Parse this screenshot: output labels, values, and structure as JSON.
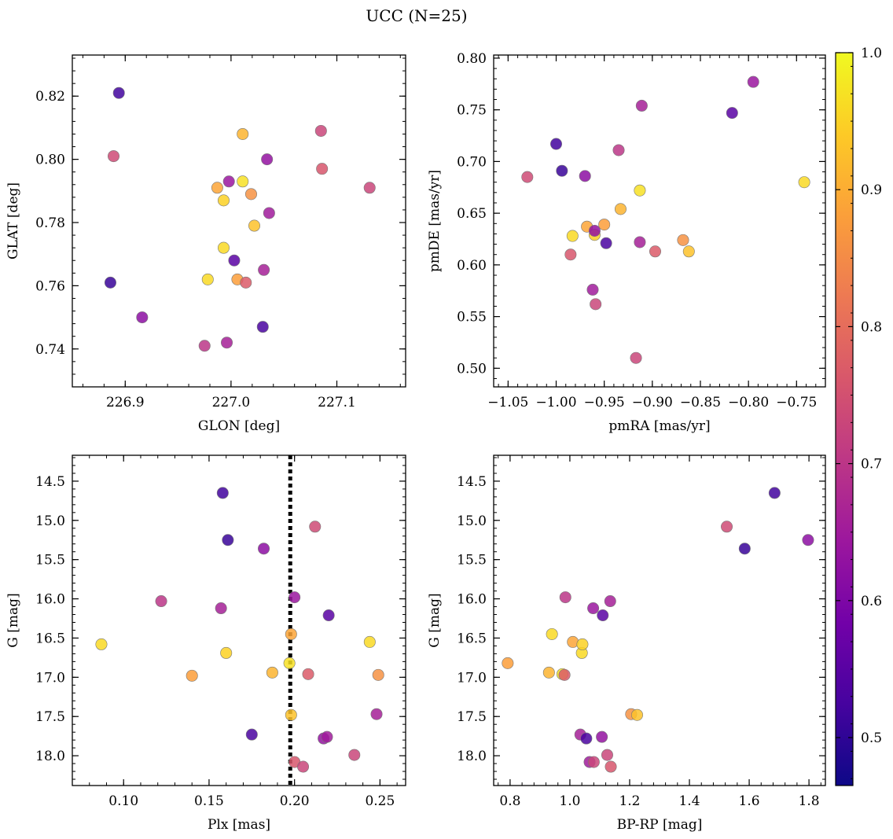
{
  "figure": {
    "title": "UCC (N=25)"
  },
  "colorbar": {
    "ticks": [
      "0.5",
      "0.6",
      "0.7",
      "0.8",
      "0.9",
      "1.0"
    ],
    "tick_values": [
      0.5,
      0.6,
      0.7,
      0.8,
      0.9,
      1.0
    ],
    "range": [
      0.465,
      1.0
    ],
    "colors": [
      "#0d0887",
      "#46039f",
      "#7201a8",
      "#9c179e",
      "#bd3786",
      "#d8576b",
      "#ed7953",
      "#fb9f3a",
      "#fdca26",
      "#f0f921"
    ]
  },
  "chart_data": [
    {
      "type": "scatter",
      "xlabel": "GLON [deg]",
      "ylabel": "GLAT [deg]",
      "xlim": [
        226.85,
        227.165
      ],
      "ylim": [
        0.728,
        0.833
      ],
      "xticks": [
        226.9,
        227.0,
        227.1
      ],
      "xtick_labels": [
        "226.9",
        "227.0",
        "227.1"
      ],
      "yticks": [
        0.74,
        0.76,
        0.78,
        0.8,
        0.82
      ],
      "ytick_labels": [
        "0.74",
        "0.76",
        "0.78",
        "0.80",
        "0.82"
      ],
      "x": [
        226.894,
        226.889,
        226.886,
        226.916,
        226.975,
        226.996,
        226.998,
        227.003,
        226.993,
        226.987,
        226.978,
        226.993,
        227.006,
        227.011,
        227.011,
        227.014,
        227.019,
        227.022,
        227.031,
        227.03,
        227.034,
        227.036,
        227.085,
        227.086,
        227.131
      ],
      "y": [
        0.821,
        0.801,
        0.761,
        0.75,
        0.741,
        0.742,
        0.793,
        0.768,
        0.772,
        0.791,
        0.762,
        0.787,
        0.762,
        0.808,
        0.793,
        0.761,
        0.789,
        0.779,
        0.765,
        0.747,
        0.8,
        0.783,
        0.809,
        0.797,
        0.791
      ]
    },
    {
      "type": "scatter",
      "xlabel": "pmRA [mas/yr]",
      "ylabel": "pmDE [mas/yr]",
      "xlim": [
        -1.065,
        -0.72
      ],
      "ylim": [
        0.482,
        0.803
      ],
      "xticks": [
        -1.05,
        -1.0,
        -0.95,
        -0.9,
        -0.85,
        -0.8,
        -0.75
      ],
      "xtick_labels": [
        "−1.05",
        "−1.00",
        "−0.95",
        "−0.90",
        "−0.85",
        "−0.80",
        "−0.75"
      ],
      "yticks": [
        0.5,
        0.55,
        0.6,
        0.65,
        0.7,
        0.75,
        0.8
      ],
      "ytick_labels": [
        "0.50",
        "0.55",
        "0.60",
        "0.65",
        "0.70",
        "0.75",
        "0.80"
      ],
      "x": [
        -1.0,
        -1.03,
        -0.994,
        -0.97,
        -0.935,
        -0.911,
        -0.795,
        -0.817,
        -0.742,
        -0.968,
        -0.983,
        -0.96,
        -0.95,
        -0.933,
        -0.913,
        -0.897,
        -0.868,
        -0.862,
        -0.913,
        -0.948,
        -0.96,
        -0.962,
        -0.959,
        -0.985,
        -0.917
      ],
      "y": [
        0.717,
        0.685,
        0.691,
        0.686,
        0.711,
        0.754,
        0.777,
        0.747,
        0.68,
        0.637,
        0.628,
        0.629,
        0.639,
        0.654,
        0.672,
        0.613,
        0.624,
        0.613,
        0.622,
        0.621,
        0.633,
        0.576,
        0.562,
        0.61,
        0.51
      ]
    },
    {
      "type": "scatter",
      "xlabel": "Plx [mas]",
      "ylabel": "G [mag]",
      "xlim": [
        0.07,
        0.265
      ],
      "ylim": [
        18.38,
        14.17
      ],
      "y_inverted": true,
      "reference_line": {
        "x": 0.1975,
        "style": "dotted"
      },
      "xticks": [
        0.1,
        0.15,
        0.2,
        0.25
      ],
      "xtick_labels": [
        "0.10",
        "0.15",
        "0.20",
        "0.25"
      ],
      "yticks": [
        14.5,
        15.0,
        15.5,
        16.0,
        16.5,
        17.0,
        17.5,
        18.0
      ],
      "ytick_labels": [
        "14.5",
        "15.0",
        "15.5",
        "16.0",
        "16.5",
        "17.0",
        "17.5",
        "18.0"
      ],
      "x": [
        0.158,
        0.212,
        0.161,
        0.182,
        0.122,
        0.157,
        0.2,
        0.22,
        0.087,
        0.198,
        0.244,
        0.16,
        0.14,
        0.187,
        0.197,
        0.208,
        0.249,
        0.198,
        0.248,
        0.175,
        0.217,
        0.219,
        0.235,
        0.2,
        0.205
      ],
      "y": [
        14.65,
        15.08,
        15.25,
        15.36,
        16.03,
        16.12,
        15.98,
        16.21,
        16.58,
        16.45,
        16.55,
        16.69,
        16.98,
        16.94,
        16.82,
        16.96,
        16.97,
        17.48,
        17.47,
        17.73,
        17.78,
        17.76,
        17.99,
        18.08,
        18.14
      ]
    },
    {
      "type": "scatter",
      "xlabel": "BP-RP [mag]",
      "ylabel": "G [mag]",
      "xlim": [
        0.745,
        1.855
      ],
      "ylim": [
        18.38,
        14.17
      ],
      "y_inverted": true,
      "xticks": [
        0.8,
        1.0,
        1.2,
        1.4,
        1.6,
        1.8
      ],
      "xtick_labels": [
        "0.8",
        "1.0",
        "1.2",
        "1.4",
        "1.6",
        "1.8"
      ],
      "yticks": [
        14.5,
        15.0,
        15.5,
        16.0,
        16.5,
        17.0,
        17.5,
        18.0
      ],
      "ytick_labels": [
        "14.5",
        "15.0",
        "15.5",
        "16.0",
        "16.5",
        "17.0",
        "17.5",
        "18.0"
      ],
      "x": [
        1.685,
        1.525,
        1.585,
        1.797,
        0.985,
        1.135,
        1.078,
        1.11,
        0.94,
        1.01,
        1.04,
        1.042,
        0.792,
        0.93,
        0.975,
        0.982,
        1.205,
        1.225,
        1.035,
        1.055,
        1.107,
        1.066,
        1.125,
        1.137,
        1.08
      ],
      "y": [
        14.65,
        15.08,
        15.36,
        15.25,
        15.98,
        16.03,
        16.12,
        16.21,
        16.45,
        16.55,
        16.69,
        16.58,
        16.82,
        16.94,
        16.96,
        16.97,
        17.47,
        17.48,
        17.73,
        17.78,
        17.76,
        18.08,
        17.99,
        18.14,
        18.08
      ]
    }
  ],
  "membership": [
    0.52,
    0.74,
    0.51,
    0.62,
    0.7,
    0.66,
    0.64,
    0.55,
    0.96,
    0.89,
    0.96,
    0.95,
    0.88,
    0.91,
    0.97,
    0.77,
    0.86,
    0.93,
    0.66,
    0.53,
    0.63,
    0.65,
    0.73,
    0.76,
    0.73
  ]
}
